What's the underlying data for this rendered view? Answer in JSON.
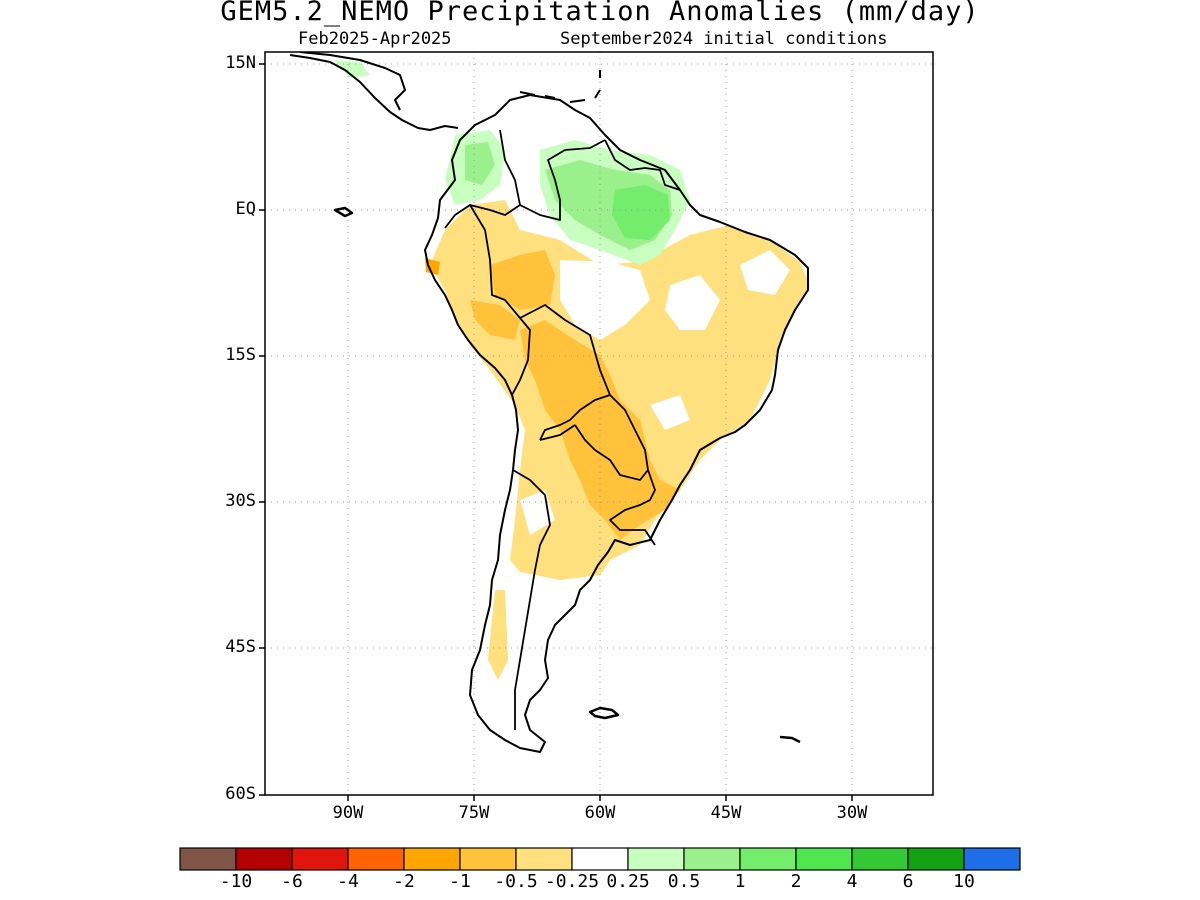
{
  "title": "GEM5.2_NEMO Precipitation Anomalies (mm/day)",
  "subtitle_left": "Feb2025-Apr2025",
  "subtitle_right": "September2024 initial conditions",
  "lat_labels": [
    "15N",
    "EQ",
    "15S",
    "30S",
    "45S",
    "60S"
  ],
  "lon_labels": [
    "90W",
    "75W",
    "60W",
    "45W",
    "30W"
  ],
  "colorbar": {
    "labels": [
      "-10",
      "-6",
      "-4",
      "-2",
      "-1",
      "-0.5",
      "-0.25",
      "0.25",
      "0.5",
      "1",
      "2",
      "4",
      "6",
      "10"
    ],
    "colors": [
      "#7f5548",
      "#b40000",
      "#e0160d",
      "#ff6200",
      "#ffa500",
      "#ffc23a",
      "#ffe07e",
      "#ffffff",
      "#c8ffc0",
      "#9af08a",
      "#74ec6c",
      "#50e650",
      "#34c834",
      "#13a013",
      "#1e6ee8"
    ]
  },
  "map": {
    "ocean_color": "#ffffff",
    "land_background": "#ffffff",
    "coast_color": "#000000",
    "grid": "dotted",
    "region": "South America"
  }
}
